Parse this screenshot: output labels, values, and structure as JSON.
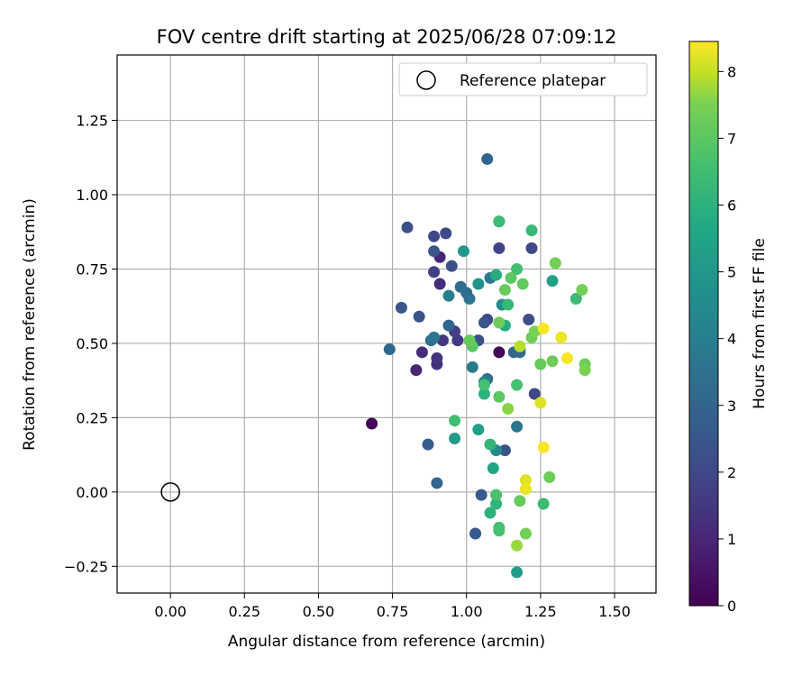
{
  "chart_data": {
    "type": "scatter",
    "title": "FOV centre drift starting at 2025/06/28 07:09:12",
    "xlabel": "Angular distance from reference (arcmin)",
    "ylabel": "Rotation from reference (arcmin)",
    "xlim": [
      -0.18,
      1.64
    ],
    "ylim": [
      -0.34,
      1.47
    ],
    "xticks": [
      "0.00",
      "0.25",
      "0.50",
      "0.75",
      "1.00",
      "1.25",
      "1.50"
    ],
    "xtick_values": [
      0.0,
      0.25,
      0.5,
      0.75,
      1.0,
      1.25,
      1.5
    ],
    "yticks": [
      "−0.25",
      "0.00",
      "0.25",
      "0.50",
      "0.75",
      "1.00",
      "1.25"
    ],
    "ytick_values": [
      -0.25,
      0.0,
      0.25,
      0.5,
      0.75,
      1.0,
      1.25
    ],
    "grid": true,
    "legend": {
      "position": "top-right",
      "entries": [
        "Reference platepar"
      ]
    },
    "reference_point": {
      "x": 0.0,
      "y": 0.0
    },
    "colormap": "viridis",
    "colorbar": {
      "label": "Hours from first FF file",
      "min": 0,
      "max": 8.45,
      "ticks": [
        "0",
        "1",
        "2",
        "3",
        "4",
        "5",
        "6",
        "7",
        "8"
      ],
      "tick_values": [
        0,
        1,
        2,
        3,
        4,
        5,
        6,
        7,
        8
      ]
    },
    "points": [
      [
        0.68,
        0.23,
        0.1
      ],
      [
        1.11,
        0.47,
        0.1
      ],
      [
        0.91,
        0.79,
        1.0
      ],
      [
        0.83,
        0.41,
        1.0
      ],
      [
        0.85,
        0.47,
        1.2
      ],
      [
        0.9,
        0.43,
        1.3
      ],
      [
        0.9,
        0.45,
        1.4
      ],
      [
        0.91,
        0.7,
        1.2
      ],
      [
        0.92,
        0.51,
        1.5
      ],
      [
        0.97,
        0.51,
        1.6
      ],
      [
        0.96,
        0.54,
        1.7
      ],
      [
        1.07,
        0.58,
        1.9
      ],
      [
        1.11,
        0.91,
        1.8
      ],
      [
        1.11,
        0.82,
        1.9
      ],
      [
        0.89,
        0.74,
        1.7
      ],
      [
        1.22,
        0.82,
        2.0
      ],
      [
        1.23,
        0.33,
        2.0
      ],
      [
        1.18,
        0.48,
        2.1
      ],
      [
        1.21,
        0.58,
        2.2
      ],
      [
        0.89,
        0.86,
        2.0
      ],
      [
        0.93,
        0.87,
        2.1
      ],
      [
        0.95,
        0.76,
        2.2
      ],
      [
        0.8,
        0.89,
        2.3
      ],
      [
        0.78,
        0.62,
        2.4
      ],
      [
        0.84,
        0.59,
        2.4
      ],
      [
        0.89,
        0.81,
        2.5
      ],
      [
        1.04,
        0.51,
        2.3
      ],
      [
        1.06,
        0.57,
        2.5
      ],
      [
        1.13,
        0.14,
        2.4
      ],
      [
        1.05,
        -0.01,
        2.6
      ],
      [
        1.03,
        -0.14,
        2.6
      ],
      [
        0.87,
        0.16,
        2.7
      ],
      [
        0.9,
        0.03,
        3.0
      ],
      [
        1.07,
        1.12,
        3.0
      ],
      [
        0.74,
        0.48,
        3.1
      ],
      [
        0.94,
        0.56,
        3.0
      ],
      [
        0.88,
        0.51,
        3.4
      ],
      [
        0.89,
        0.52,
        3.6
      ],
      [
        0.98,
        0.69,
        3.2
      ],
      [
        1.0,
        0.67,
        3.4
      ],
      [
        1.01,
        0.65,
        3.5
      ],
      [
        1.07,
        0.38,
        3.3
      ],
      [
        1.18,
        0.47,
        3.2
      ],
      [
        1.16,
        0.47,
        3.1
      ],
      [
        1.17,
        0.22,
        3.6
      ],
      [
        1.02,
        0.42,
        3.8
      ],
      [
        1.08,
        0.72,
        3.8
      ],
      [
        0.94,
        0.66,
        4.0
      ],
      [
        1.06,
        0.37,
        4.3
      ],
      [
        1.1,
        0.14,
        4.5
      ],
      [
        1.12,
        0.63,
        4.6
      ],
      [
        1.04,
        0.7,
        4.8
      ],
      [
        0.99,
        0.81,
        5.0
      ],
      [
        0.96,
        0.18,
        5.1
      ],
      [
        1.04,
        0.21,
        5.3
      ],
      [
        1.09,
        0.08,
        5.5
      ],
      [
        1.17,
        -0.27,
        5.2
      ],
      [
        1.29,
        0.71,
        5.3
      ],
      [
        1.1,
        0.73,
        5.8
      ],
      [
        1.13,
        0.56,
        5.8
      ],
      [
        1.06,
        0.33,
        6.0
      ],
      [
        1.08,
        -0.07,
        6.0
      ],
      [
        1.1,
        -0.04,
        6.1
      ],
      [
        1.08,
        0.16,
        6.2
      ],
      [
        1.14,
        0.63,
        6.3
      ],
      [
        1.22,
        0.88,
        6.3
      ],
      [
        1.17,
        0.75,
        6.5
      ],
      [
        1.11,
        0.91,
        6.4
      ],
      [
        1.11,
        -0.12,
        6.5
      ],
      [
        1.11,
        -0.13,
        6.6
      ],
      [
        1.1,
        -0.01,
        6.7
      ],
      [
        0.96,
        0.24,
        6.5
      ],
      [
        1.06,
        0.36,
        6.6
      ],
      [
        1.17,
        0.36,
        6.6
      ],
      [
        1.26,
        -0.04,
        6.4
      ],
      [
        1.37,
        0.65,
        6.4
      ],
      [
        1.02,
        0.49,
        7.0
      ],
      [
        1.01,
        0.51,
        7.2
      ],
      [
        1.15,
        0.72,
        7.0
      ],
      [
        1.19,
        0.7,
        7.1
      ],
      [
        1.11,
        0.32,
        7.0
      ],
      [
        1.13,
        0.68,
        7.2
      ],
      [
        1.11,
        0.57,
        7.3
      ],
      [
        1.18,
        -0.03,
        7.2
      ],
      [
        1.2,
        -0.14,
        7.4
      ],
      [
        1.22,
        0.52,
        7.3
      ],
      [
        1.23,
        0.54,
        7.5
      ],
      [
        1.25,
        0.43,
        7.2
      ],
      [
        1.29,
        0.44,
        7.3
      ],
      [
        1.28,
        0.05,
        7.3
      ],
      [
        1.3,
        0.77,
        7.4
      ],
      [
        1.39,
        0.68,
        7.4
      ],
      [
        1.4,
        0.43,
        7.3
      ],
      [
        1.4,
        0.41,
        7.5
      ],
      [
        1.14,
        0.28,
        7.6
      ],
      [
        1.17,
        -0.18,
        7.7
      ],
      [
        1.18,
        0.49,
        7.9
      ],
      [
        1.2,
        0.04,
        8.2
      ],
      [
        1.2,
        0.01,
        8.3
      ],
      [
        1.25,
        0.3,
        8.2
      ],
      [
        1.26,
        0.55,
        8.4
      ],
      [
        1.26,
        0.15,
        8.4
      ],
      [
        1.32,
        0.52,
        8.3
      ],
      [
        1.34,
        0.45,
        8.4
      ]
    ]
  }
}
